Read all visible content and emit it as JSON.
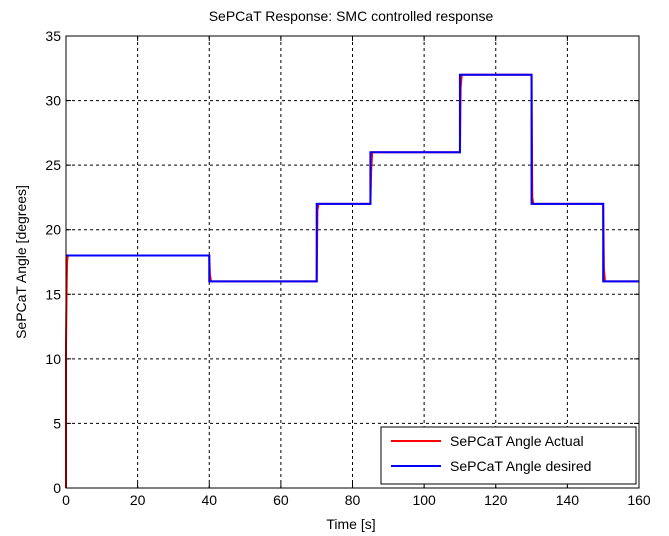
{
  "chart_data": {
    "type": "line",
    "title": "SePCaT Response: SMC controlled response",
    "xlabel": "Time [s]",
    "ylabel": "SePCaT Angle [degrees]",
    "xlim": [
      0,
      160
    ],
    "ylim": [
      0,
      35
    ],
    "xticks": [
      0,
      20,
      40,
      60,
      80,
      100,
      120,
      140,
      160
    ],
    "yticks": [
      0,
      5,
      10,
      15,
      20,
      25,
      30,
      35
    ],
    "grid": true,
    "grid_style": "dashed",
    "legend_position": "bottom-right",
    "series": [
      {
        "name": "SePCaT Angle Actual",
        "color": "#ff0000",
        "x": [
          0,
          0,
          0.2,
          0.3,
          0.5,
          0.7,
          40,
          40.2,
          40.5,
          70,
          70.2,
          70.5,
          85,
          85.2,
          85.5,
          110,
          110.2,
          110.5,
          130,
          130.2,
          130.5,
          150,
          150.2,
          150.5,
          160
        ],
        "y": [
          0,
          11,
          16,
          17.5,
          18,
          18,
          18,
          16.5,
          16,
          16,
          21.5,
          22,
          22,
          24.5,
          26,
          26,
          31,
          32,
          32,
          22.5,
          22,
          22,
          17,
          16,
          16
        ]
      },
      {
        "name": "SePCaT Angle desired",
        "color": "#0000ff",
        "x": [
          0,
          40,
          40,
          70,
          70,
          85,
          85,
          110,
          110,
          130,
          130,
          150,
          150,
          160
        ],
        "y": [
          18,
          18,
          16,
          16,
          22,
          22,
          26,
          26,
          32,
          32,
          22,
          22,
          16,
          16
        ]
      }
    ]
  }
}
